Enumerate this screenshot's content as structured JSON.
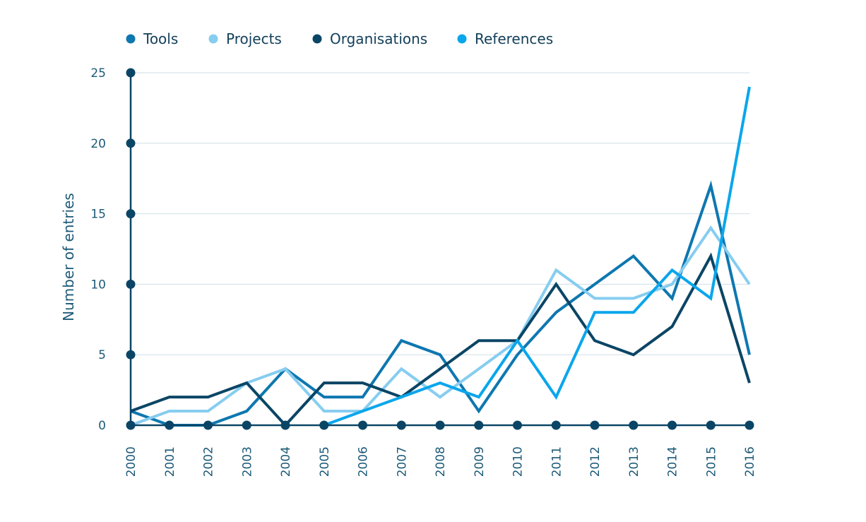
{
  "chart_data": {
    "type": "line",
    "title": "",
    "xlabel": "",
    "ylabel": "Number of entries",
    "ylim": [
      0,
      25
    ],
    "yticks": [
      "0",
      "5",
      "10",
      "15",
      "20",
      "25"
    ],
    "grid": true,
    "legend_position": "top-left",
    "categories": [
      "2000",
      "2001",
      "2002",
      "2003",
      "2004",
      "2005",
      "2006",
      "2007",
      "2008",
      "2009",
      "2010",
      "2011",
      "2012",
      "2013",
      "2014",
      "2015",
      "2016"
    ],
    "series": [
      {
        "name": "Tools",
        "color": "#0e77b0",
        "values": [
          1,
          0,
          0,
          1,
          4,
          2,
          2,
          6,
          5,
          1,
          5,
          8,
          10,
          12,
          9,
          17,
          5
        ]
      },
      {
        "name": "Projects",
        "color": "#86cdf0",
        "values": [
          0,
          1,
          1,
          3,
          4,
          1,
          1,
          4,
          2,
          4,
          6,
          11,
          9,
          9,
          10,
          14,
          10
        ]
      },
      {
        "name": "Organisations",
        "color": "#0b4565",
        "values": [
          1,
          2,
          2,
          3,
          0,
          3,
          3,
          2,
          4,
          6,
          6,
          10,
          6,
          5,
          7,
          12,
          3
        ]
      },
      {
        "name": "References",
        "color": "#0aa6ec",
        "values": [
          null,
          null,
          null,
          null,
          null,
          0,
          1,
          2,
          3,
          2,
          6,
          2,
          8,
          8,
          11,
          9,
          24
        ]
      }
    ],
    "axis_color": "#0b4565",
    "grid_color": "#cfdfe6"
  }
}
